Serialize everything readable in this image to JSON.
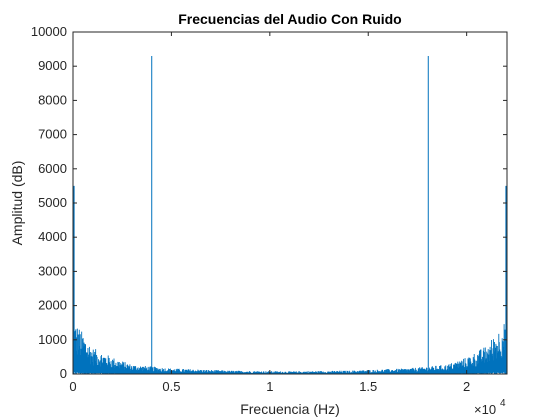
{
  "chart_data": {
    "type": "line",
    "title": "Frecuencias del Audio Con Ruido",
    "xlabel": "Frecuencia (Hz)",
    "ylabel": "Amplitud (dB)",
    "xlim": [
      0,
      22050
    ],
    "ylim": [
      0,
      10000
    ],
    "x_ticks": [
      0,
      0.5,
      1,
      1.5,
      2
    ],
    "x_tick_labels": [
      "0",
      "0.5",
      "1",
      "1.5",
      "2"
    ],
    "x_exponent_label": "×10",
    "x_exponent_power": "4",
    "x_multiplier": 10000,
    "y_ticks": [
      0,
      1000,
      2000,
      3000,
      4000,
      5000,
      6000,
      7000,
      8000,
      9000,
      10000
    ],
    "y_tick_labels": [
      "0",
      "1000",
      "2000",
      "3000",
      "4000",
      "5000",
      "6000",
      "7000",
      "8000",
      "9000",
      "10000"
    ],
    "grid": false,
    "series_color": "#0072BD",
    "peaks": [
      {
        "x": 4000,
        "y": 9300
      },
      {
        "x": 18050,
        "y": 9300
      }
    ],
    "edge_peaks": [
      {
        "x": 0,
        "y": 5500
      },
      {
        "x": 22050,
        "y": 5500
      }
    ],
    "noise_envelope": [
      {
        "x": 0,
        "y": 1500
      },
      {
        "x": 500,
        "y": 1100
      },
      {
        "x": 1000,
        "y": 700
      },
      {
        "x": 2000,
        "y": 450
      },
      {
        "x": 3000,
        "y": 250
      },
      {
        "x": 5000,
        "y": 150
      },
      {
        "x": 8000,
        "y": 90
      },
      {
        "x": 11025,
        "y": 70
      },
      {
        "x": 14000,
        "y": 90
      },
      {
        "x": 17000,
        "y": 150
      },
      {
        "x": 19000,
        "y": 250
      },
      {
        "x": 20000,
        "y": 450
      },
      {
        "x": 21000,
        "y": 750
      },
      {
        "x": 21500,
        "y": 1100
      },
      {
        "x": 22050,
        "y": 1500
      }
    ]
  }
}
